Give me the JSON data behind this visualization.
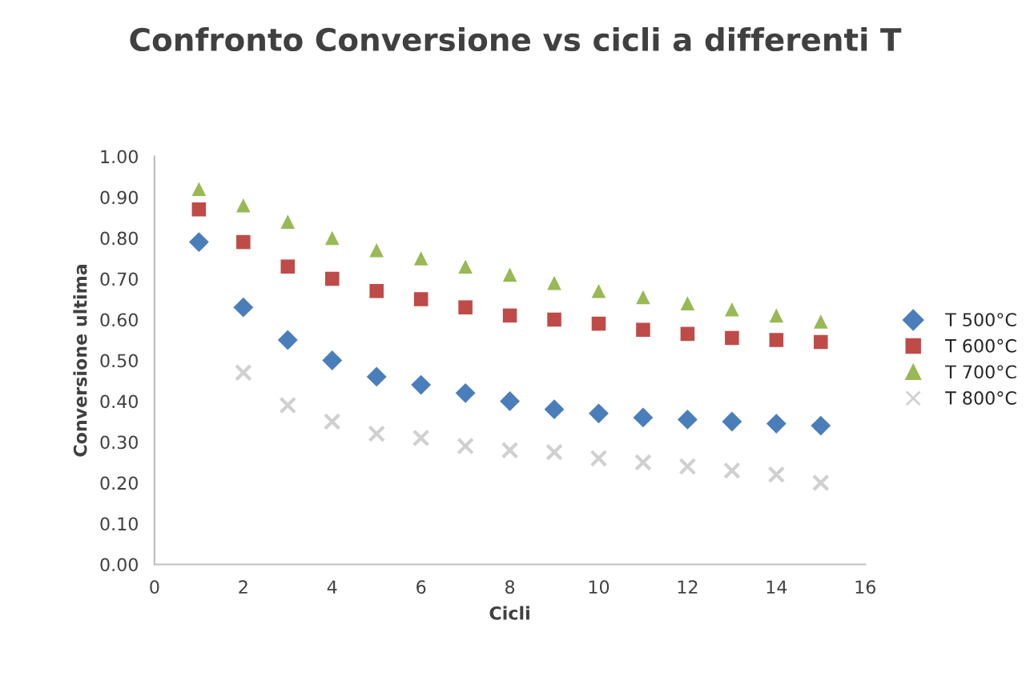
{
  "chart_data": {
    "type": "scatter",
    "title": "Confronto Conversione vs cicli a differenti T",
    "xlabel": "Cicli",
    "ylabel": "Conversione ultima",
    "x": [
      1,
      2,
      3,
      4,
      5,
      6,
      7,
      8,
      9,
      10,
      11,
      12,
      13,
      14,
      15
    ],
    "series": [
      {
        "name": "T 500°C",
        "color": "#4a7ebb",
        "marker": "diamond",
        "values": [
          0.79,
          0.63,
          0.55,
          0.5,
          0.46,
          0.44,
          0.42,
          0.4,
          0.38,
          0.37,
          0.36,
          0.355,
          0.35,
          0.345,
          0.34
        ]
      },
      {
        "name": "T 600°C",
        "color": "#be4b48",
        "marker": "square",
        "values": [
          0.87,
          0.79,
          0.73,
          0.7,
          0.67,
          0.65,
          0.63,
          0.61,
          0.6,
          0.59,
          0.575,
          0.565,
          0.555,
          0.55,
          0.545
        ]
      },
      {
        "name": "T 700°C",
        "color": "#98b954",
        "marker": "triangle",
        "values": [
          0.92,
          0.88,
          0.84,
          0.8,
          0.77,
          0.75,
          0.73,
          0.71,
          0.69,
          0.67,
          0.655,
          0.64,
          0.625,
          0.61,
          0.595
        ]
      },
      {
        "name": "T 800°C",
        "color": "#d0d0d0",
        "marker": "cross",
        "values": [
          null,
          0.47,
          0.39,
          0.35,
          0.32,
          0.31,
          0.29,
          0.28,
          0.275,
          0.26,
          0.25,
          0.24,
          0.23,
          0.22,
          0.2
        ]
      }
    ],
    "xlim": [
      0,
      16
    ],
    "xticks": [
      0,
      2,
      4,
      6,
      8,
      10,
      12,
      14,
      16
    ],
    "ylim": [
      0,
      1
    ],
    "yticks": [
      {
        "value": 0,
        "label": "0.00"
      },
      {
        "value": 0.1,
        "label": "0.10"
      },
      {
        "value": 0.2,
        "label": "0.20"
      },
      {
        "value": 0.3,
        "label": "0.30"
      },
      {
        "value": 0.4,
        "label": "0.40"
      },
      {
        "value": 0.5,
        "label": "0.50"
      },
      {
        "value": 0.6,
        "label": "0.60"
      },
      {
        "value": 0.7,
        "label": "0.70"
      },
      {
        "value": 0.8,
        "label": "0.80"
      },
      {
        "value": 0.9,
        "label": "0.90"
      },
      {
        "value": 1.0,
        "label": "1.00"
      }
    ],
    "grid": false,
    "legend": "right"
  }
}
